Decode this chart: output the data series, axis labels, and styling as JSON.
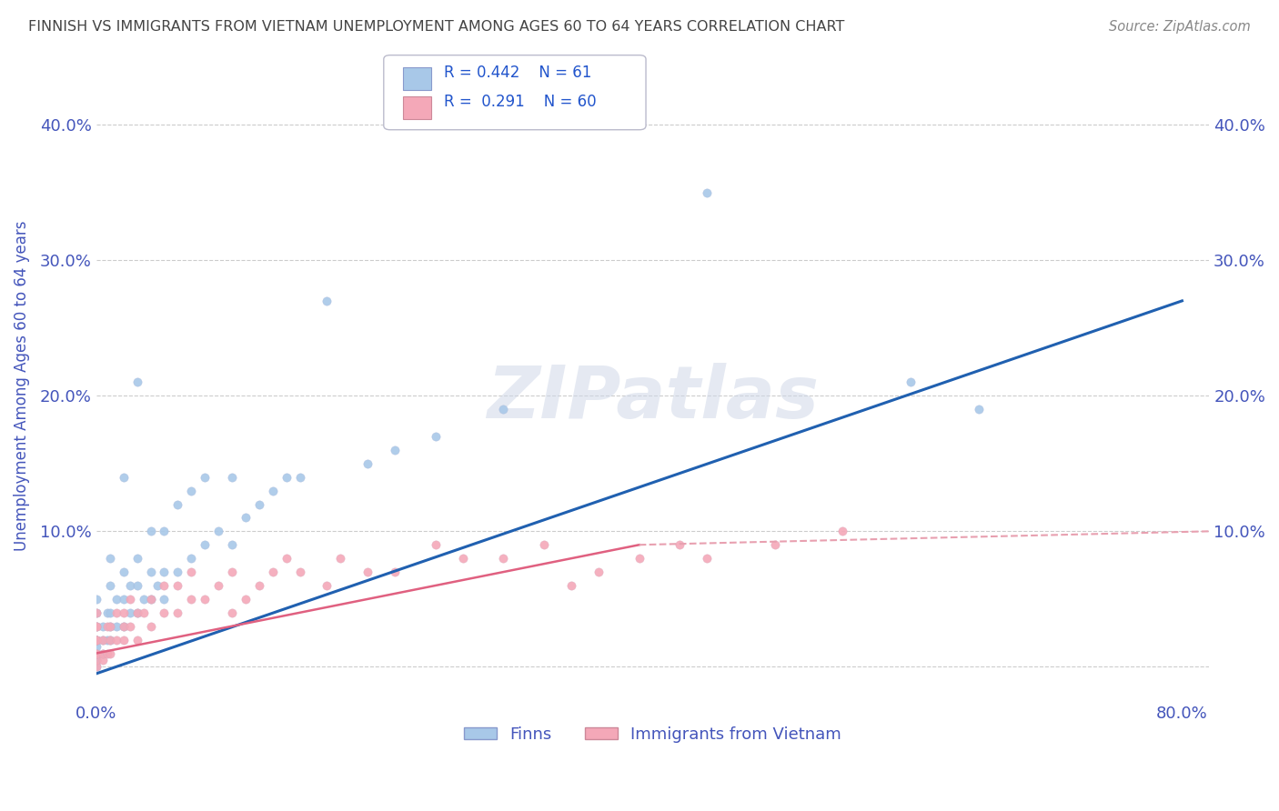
{
  "title": "FINNISH VS IMMIGRANTS FROM VIETNAM UNEMPLOYMENT AMONG AGES 60 TO 64 YEARS CORRELATION CHART",
  "source": "Source: ZipAtlas.com",
  "ylabel": "Unemployment Among Ages 60 to 64 years",
  "xlim": [
    0.0,
    0.82
  ],
  "ylim": [
    -0.025,
    0.44
  ],
  "yticks": [
    0.0,
    0.1,
    0.2,
    0.3,
    0.4
  ],
  "ytick_labels_left": [
    "",
    "10.0%",
    "20.0%",
    "30.0%",
    "40.0%"
  ],
  "ytick_labels_right": [
    "",
    "10.0%",
    "20.0%",
    "30.0%",
    "40.0%"
  ],
  "xticks": [
    0.0,
    0.1,
    0.2,
    0.3,
    0.4,
    0.5,
    0.6,
    0.7,
    0.8
  ],
  "xtick_labels": [
    "0.0%",
    "",
    "",
    "",
    "",
    "",
    "",
    "",
    "80.0%"
  ],
  "legend_labels": [
    "Finns",
    "Immigrants from Vietnam"
  ],
  "legend_r_n": [
    {
      "R": "0.442",
      "N": "61"
    },
    {
      "R": "0.291",
      "N": "60"
    }
  ],
  "finns_color": "#a8c8e8",
  "vietnam_color": "#f4a8b8",
  "finns_line_color": "#2060b0",
  "vietnam_line_color": "#e06080",
  "vietnam_dash_color": "#e8a0b0",
  "watermark": "ZIPatlas",
  "background_color": "#ffffff",
  "grid_color": "#cccccc",
  "title_color": "#444444",
  "tick_color": "#4455bb",
  "legend_text_color": "#2255cc",
  "finns_scatter": {
    "x": [
      0.0,
      0.0,
      0.0,
      0.0,
      0.0,
      0.0,
      0.0,
      0.0,
      0.0,
      0.005,
      0.005,
      0.005,
      0.008,
      0.008,
      0.01,
      0.01,
      0.01,
      0.01,
      0.01,
      0.015,
      0.015,
      0.02,
      0.02,
      0.02,
      0.02,
      0.025,
      0.025,
      0.03,
      0.03,
      0.03,
      0.03,
      0.035,
      0.04,
      0.04,
      0.04,
      0.045,
      0.05,
      0.05,
      0.05,
      0.06,
      0.06,
      0.07,
      0.07,
      0.08,
      0.08,
      0.09,
      0.1,
      0.1,
      0.11,
      0.12,
      0.13,
      0.14,
      0.15,
      0.17,
      0.2,
      0.22,
      0.25,
      0.3,
      0.45,
      0.6,
      0.65
    ],
    "y": [
      0.0,
      0.005,
      0.01,
      0.015,
      0.02,
      0.02,
      0.03,
      0.04,
      0.05,
      0.01,
      0.02,
      0.03,
      0.02,
      0.04,
      0.02,
      0.03,
      0.04,
      0.06,
      0.08,
      0.03,
      0.05,
      0.03,
      0.05,
      0.07,
      0.14,
      0.04,
      0.06,
      0.04,
      0.06,
      0.08,
      0.21,
      0.05,
      0.05,
      0.07,
      0.1,
      0.06,
      0.05,
      0.07,
      0.1,
      0.07,
      0.12,
      0.08,
      0.13,
      0.09,
      0.14,
      0.1,
      0.09,
      0.14,
      0.11,
      0.12,
      0.13,
      0.14,
      0.14,
      0.27,
      0.15,
      0.16,
      0.17,
      0.19,
      0.35,
      0.21,
      0.19
    ]
  },
  "vietnam_scatter": {
    "x": [
      0.0,
      0.0,
      0.0,
      0.0,
      0.0,
      0.0,
      0.0,
      0.0,
      0.0,
      0.0,
      0.005,
      0.005,
      0.005,
      0.008,
      0.008,
      0.01,
      0.01,
      0.01,
      0.015,
      0.015,
      0.02,
      0.02,
      0.02,
      0.025,
      0.025,
      0.03,
      0.03,
      0.035,
      0.04,
      0.04,
      0.05,
      0.05,
      0.06,
      0.06,
      0.07,
      0.07,
      0.08,
      0.09,
      0.1,
      0.1,
      0.11,
      0.12,
      0.13,
      0.14,
      0.15,
      0.17,
      0.18,
      0.2,
      0.22,
      0.25,
      0.27,
      0.3,
      0.33,
      0.35,
      0.37,
      0.4,
      0.43,
      0.45,
      0.5,
      0.55
    ],
    "y": [
      0.0,
      0.005,
      0.01,
      0.01,
      0.02,
      0.02,
      0.02,
      0.03,
      0.03,
      0.04,
      0.005,
      0.01,
      0.02,
      0.01,
      0.03,
      0.01,
      0.02,
      0.03,
      0.02,
      0.04,
      0.02,
      0.03,
      0.04,
      0.03,
      0.05,
      0.02,
      0.04,
      0.04,
      0.03,
      0.05,
      0.04,
      0.06,
      0.04,
      0.06,
      0.05,
      0.07,
      0.05,
      0.06,
      0.04,
      0.07,
      0.05,
      0.06,
      0.07,
      0.08,
      0.07,
      0.06,
      0.08,
      0.07,
      0.07,
      0.09,
      0.08,
      0.08,
      0.09,
      0.06,
      0.07,
      0.08,
      0.09,
      0.08,
      0.09,
      0.1
    ]
  },
  "finns_line": {
    "x0": 0.0,
    "y0": -0.005,
    "x1": 0.8,
    "y1": 0.27
  },
  "vietnam_solid_line": {
    "x0": 0.0,
    "y0": 0.01,
    "x1": 0.4,
    "y1": 0.09
  },
  "vietnam_dash_line": {
    "x0": 0.4,
    "y0": 0.09,
    "x1": 0.82,
    "y1": 0.1
  }
}
